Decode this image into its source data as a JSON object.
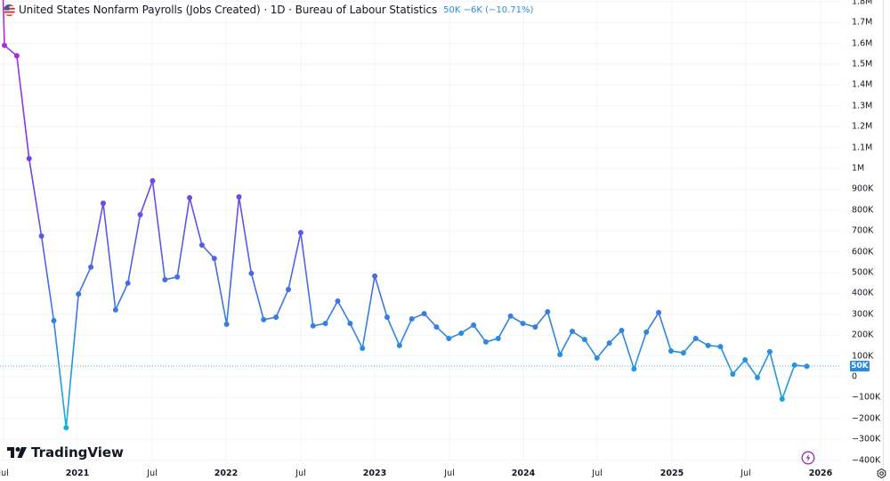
{
  "legend": {
    "title": "United States Nonfarm Payrolls (Jobs Created) · 1D · Bureau of Labour Statistics",
    "value": "50K",
    "change": "−6K (−10.71%)",
    "icon": "us-flag-icon"
  },
  "branding": {
    "logo_text": "TradingView"
  },
  "price_tag": {
    "value": "50K",
    "color": "#2a8be0"
  },
  "y_axis": {
    "labels": [
      "1.8M",
      "1.7M",
      "1.6M",
      "1.5M",
      "1.4M",
      "1.3M",
      "1.2M",
      "1.1M",
      "1M",
      "900K",
      "800K",
      "700K",
      "600K",
      "500K",
      "400K",
      "300K",
      "200K",
      "100K",
      "0",
      "−100K",
      "−200K",
      "−300K",
      "−400K"
    ]
  },
  "x_axis": {
    "labels": [
      "Jul",
      "2021",
      "Jul",
      "2022",
      "Jul",
      "2023",
      "Jul",
      "2024",
      "Jul",
      "2025",
      "Jul",
      "2026"
    ]
  },
  "colors": {
    "line_top": "#9c27f0",
    "line_bottom": "#1aa6e0",
    "grid": "#f0f3fa",
    "accent": "#2a8be0"
  },
  "chart_data": {
    "type": "line",
    "title": "United States Nonfarm Payrolls (Jobs Created) · 1D · Bureau of Labour Statistics",
    "xlabel": "",
    "ylabel": "Jobs Created",
    "ylim": [
      -400000,
      1800000
    ],
    "grid": true,
    "legend_position": "top-left",
    "x": [
      "2020-07",
      "2020-08",
      "2020-09",
      "2020-10",
      "2020-11",
      "2020-12",
      "2021-01",
      "2021-02",
      "2021-03",
      "2021-04",
      "2021-05",
      "2021-06",
      "2021-07",
      "2021-08",
      "2021-09",
      "2021-10",
      "2021-11",
      "2021-12",
      "2022-01",
      "2022-02",
      "2022-03",
      "2022-04",
      "2022-05",
      "2022-06",
      "2022-07",
      "2022-08",
      "2022-09",
      "2022-10",
      "2022-11",
      "2022-12",
      "2023-01",
      "2023-02",
      "2023-03",
      "2023-04",
      "2023-05",
      "2023-06",
      "2023-07",
      "2023-08",
      "2023-09",
      "2023-10",
      "2023-11",
      "2023-12",
      "2024-01",
      "2024-02",
      "2024-03",
      "2024-04",
      "2024-05",
      "2024-06",
      "2024-07",
      "2024-08",
      "2024-09",
      "2024-10",
      "2024-11",
      "2024-12",
      "2025-01",
      "2025-02",
      "2025-03",
      "2025-04",
      "2025-05",
      "2025-06",
      "2025-07",
      "2025-08",
      "2025-09",
      "2025-10",
      "2025-11",
      "2025-12"
    ],
    "series": [
      {
        "name": "United States Nonfarm Payrolls (Jobs Created)",
        "values": [
          1590000,
          1540000,
          1047000,
          675000,
          269000,
          -244000,
          397000,
          526000,
          833000,
          321000,
          449000,
          778000,
          940000,
          466000,
          479000,
          859000,
          632000,
          568000,
          252000,
          863000,
          496000,
          274000,
          286000,
          419000,
          692000,
          244000,
          256000,
          363000,
          256000,
          137000,
          483000,
          286000,
          150000,
          278000,
          303000,
          239000,
          184000,
          209000,
          248000,
          167000,
          184000,
          291000,
          256000,
          239000,
          312000,
          107000,
          218000,
          179000,
          90000,
          162000,
          222000,
          38000,
          214000,
          308000,
          124000,
          115000,
          184000,
          150000,
          145000,
          13000,
          81000,
          -4000,
          120000,
          -107000,
          56000,
          50000
        ]
      }
    ],
    "last_value": 50000,
    "last_change": -6000,
    "last_change_pct": -10.71
  }
}
